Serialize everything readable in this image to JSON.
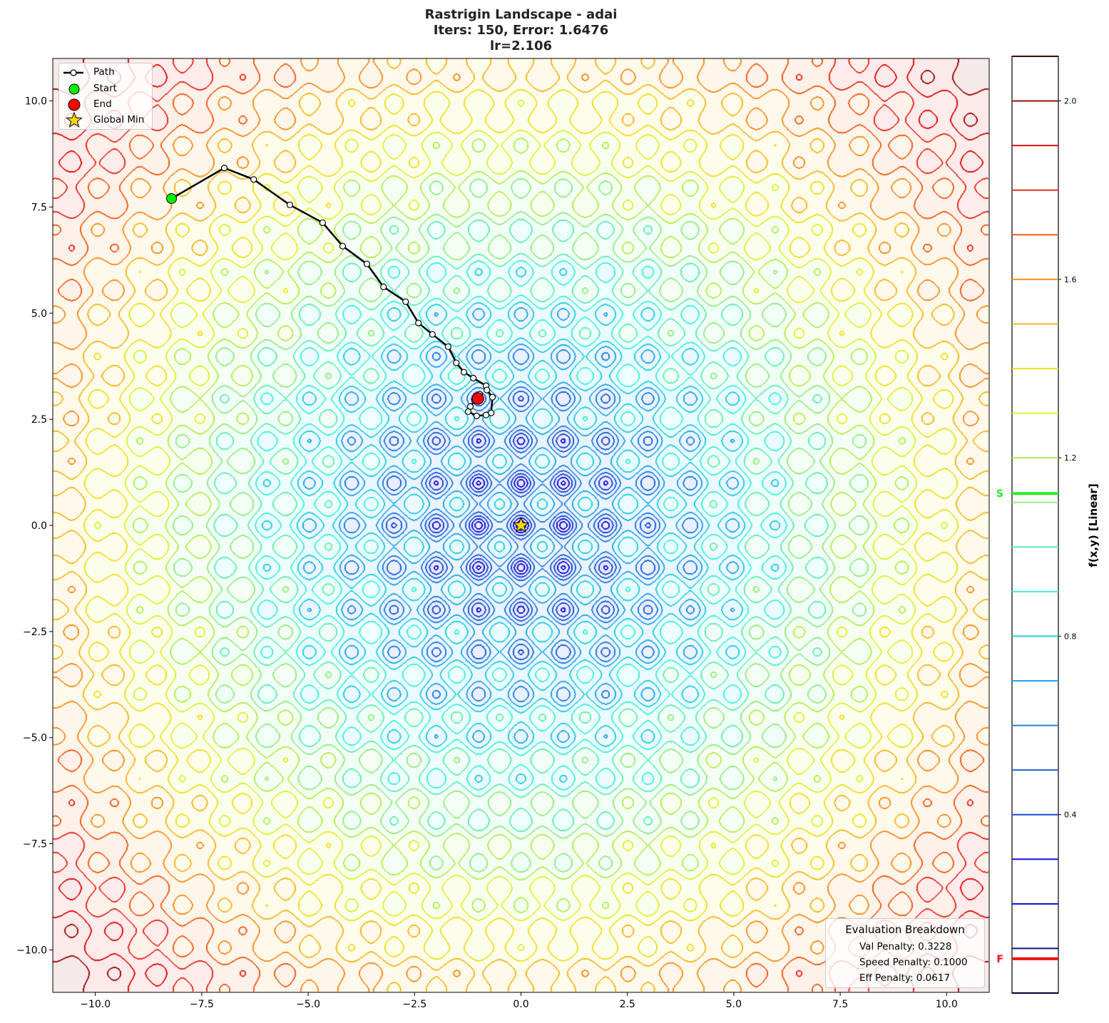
{
  "chart_data": {
    "type": "contour",
    "title": [
      "Rastrigin Landscape - adai",
      "Iters: 150, Error: 1.6476",
      "lr=2.106"
    ],
    "function": "rastrigin",
    "xlim": [
      -11,
      11
    ],
    "ylim": [
      -11,
      11
    ],
    "xticks": [
      -10,
      -7.5,
      -5,
      -2.5,
      0,
      2.5,
      5,
      7.5,
      10
    ],
    "xtick_labels": [
      "−10.0",
      "−7.5",
      "−5.0",
      "−2.5",
      "0.0",
      "2.5",
      "5.0",
      "7.5",
      "10.0"
    ],
    "yticks": [
      10,
      7.5,
      5,
      2.5,
      0,
      -2.5,
      -5,
      -7.5,
      -10
    ],
    "ytick_labels": [
      "10.0",
      "7.5",
      "5.0",
      "2.5",
      "0.0",
      "−2.5",
      "−5.0",
      "−7.5",
      "−10.0"
    ],
    "grid": false,
    "path": {
      "x": [
        -8.21,
        -6.97,
        -6.28,
        -5.43,
        -4.66,
        -4.19,
        -3.62,
        -3.23,
        -2.71,
        -2.41,
        -2.08,
        -1.71,
        -1.52,
        -1.34,
        -1.12,
        -0.82,
        -0.8,
        -0.67,
        -0.7,
        -0.82,
        -1.04,
        -1.24,
        -1.19,
        -1.09,
        -0.97,
        -1.01
      ],
      "y": [
        7.7,
        8.42,
        8.15,
        7.55,
        7.13,
        6.58,
        6.16,
        5.62,
        5.27,
        4.77,
        4.5,
        4.21,
        3.83,
        3.61,
        3.47,
        3.29,
        3.19,
        3.02,
        2.65,
        2.6,
        2.58,
        2.68,
        2.8,
        2.94,
        3.09,
        2.99
      ]
    },
    "start": {
      "x": -8.21,
      "y": 7.7,
      "color": "#00ee00"
    },
    "end": {
      "x": -1.01,
      "y": 2.99,
      "color": "#ff0000"
    },
    "global_min": {
      "x": 0,
      "y": 0,
      "color": "#ffd700"
    },
    "legend": {
      "placement": "upper-left",
      "entries": [
        "Path",
        "Start",
        "End",
        "Global Min"
      ]
    },
    "colorbar": {
      "label": "f(x,y) [Linear]",
      "range": [
        0,
        2.1
      ],
      "ticks": [
        2.0,
        1.6,
        1.2,
        0.8,
        0.4
      ],
      "tick_labels": [
        "2.0",
        "1.6",
        "1.2",
        "0.8",
        "0.4"
      ],
      "levels": [
        0,
        0.1,
        0.2,
        0.3,
        0.4,
        0.5,
        0.6,
        0.7,
        0.8,
        0.9,
        1.0,
        1.1,
        1.2,
        1.3,
        1.4,
        1.5,
        1.6,
        1.7,
        1.8,
        1.9,
        2.0,
        2.1
      ],
      "level_colors": [
        "#00003a",
        "#101090",
        "#0a0ad0",
        "#1010e0",
        "#1848d8",
        "#1a60e0",
        "#2080e8",
        "#20a8f0",
        "#20d0e8",
        "#40f0e0",
        "#60f0b0",
        "#90f080",
        "#b0f050",
        "#e0f030",
        "#f0e020",
        "#f8b820",
        "#f89020",
        "#f06018",
        "#e83020",
        "#e01010",
        "#a01010",
        "#400000"
      ],
      "markers": [
        {
          "label": "S",
          "value": 1.12,
          "color": "#22ee22"
        },
        {
          "label": "F",
          "value": 0.077,
          "color": "#ee1111"
        }
      ]
    },
    "evaluation": {
      "title": "Evaluation Breakdown",
      "lines": [
        "Val Penalty: 0.3228",
        "Speed Penalty: 0.1000",
        "Eff Penalty: 0.0617"
      ]
    }
  }
}
